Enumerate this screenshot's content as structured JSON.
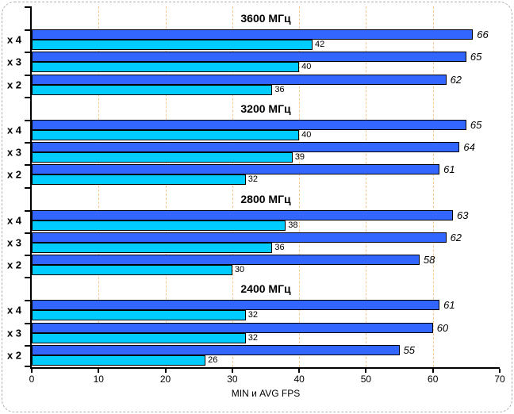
{
  "chart_data": {
    "type": "bar",
    "orientation": "horizontal",
    "xlabel": "MIN и AVG FPS",
    "xlim": [
      0,
      70
    ],
    "xticks": [
      0,
      10,
      20,
      30,
      40,
      50,
      60,
      70
    ],
    "grid": {
      "show": true,
      "interval": 10,
      "color": "#f8c893"
    },
    "legend": "none",
    "series": [
      {
        "name": "AVG FPS",
        "color": "#3366ff",
        "label_style": "italic"
      },
      {
        "name": "MIN FPS",
        "color": "#00ccff",
        "label_style": "normal"
      }
    ],
    "groups": [
      {
        "title": "3600 МГц",
        "rows": [
          {
            "label": "x 4",
            "avg": 66,
            "min": 42
          },
          {
            "label": "x 3",
            "avg": 65,
            "min": 40
          },
          {
            "label": "x 2",
            "avg": 62,
            "min": 36
          }
        ]
      },
      {
        "title": "3200 МГц",
        "rows": [
          {
            "label": "x 4",
            "avg": 65,
            "min": 40
          },
          {
            "label": "x 3",
            "avg": 64,
            "min": 39
          },
          {
            "label": "x 2",
            "avg": 61,
            "min": 32
          }
        ]
      },
      {
        "title": "2800 МГц",
        "rows": [
          {
            "label": "x 4",
            "avg": 63,
            "min": 38
          },
          {
            "label": "x 3",
            "avg": 62,
            "min": 36
          },
          {
            "label": "x 2",
            "avg": 58,
            "min": 30
          }
        ]
      },
      {
        "title": "2400 МГц",
        "rows": [
          {
            "label": "x 4",
            "avg": 61,
            "min": 32
          },
          {
            "label": "x 3",
            "avg": 60,
            "min": 32
          },
          {
            "label": "x 2",
            "avg": 55,
            "min": 26
          }
        ]
      }
    ]
  },
  "colors": {
    "avg_bar": "#3366ff",
    "min_bar": "#00ccff",
    "gridline": "#f8c893",
    "axis": "#000000",
    "figure_border": "#b0b0b0"
  }
}
